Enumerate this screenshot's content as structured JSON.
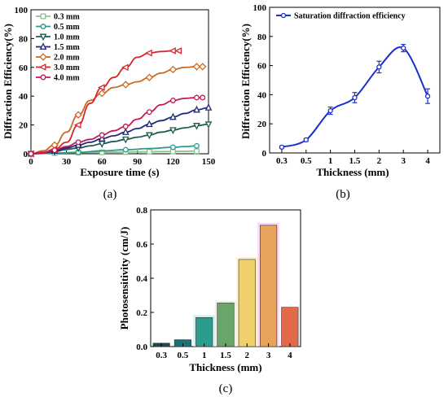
{
  "chart_data": [
    {
      "type": "line",
      "panel_label": "(a)",
      "xlabel": "Exposure time (s)",
      "ylabel": "Diffraction Efficiency(%)",
      "xlim": [
        0,
        150
      ],
      "ylim": [
        0,
        100
      ],
      "xticks": [
        "0",
        "30",
        "60",
        "90",
        "120",
        "150"
      ],
      "yticks": [
        "0",
        "20",
        "40",
        "60",
        "80",
        "100"
      ],
      "grid": false,
      "legend": "top-left",
      "series": [
        {
          "name": "0.3 mm",
          "color": "#8dc18a",
          "marker": "square",
          "x": [
            0,
            10,
            20,
            30,
            40,
            50,
            60,
            70,
            80,
            90,
            100,
            110,
            120,
            130,
            140
          ],
          "y": [
            0,
            0.3,
            0.5,
            0.6,
            0.8,
            0.9,
            1.0,
            1.1,
            1.2,
            1.3,
            1.4,
            1.5,
            1.6,
            1.7,
            1.8
          ]
        },
        {
          "name": "0.5 mm",
          "color": "#2e9a8c",
          "marker": "circle",
          "x": [
            0,
            20,
            40,
            60,
            80,
            100,
            120,
            130,
            140
          ],
          "y": [
            0,
            0.5,
            1.0,
            2.0,
            2.8,
            3.6,
            4.5,
            5.0,
            5.5
          ]
        },
        {
          "name": "1.0 mm",
          "color": "#1f5b50",
          "marker": "triangle-down",
          "x": [
            0,
            10,
            20,
            30,
            40,
            50,
            60,
            70,
            80,
            90,
            100,
            110,
            120,
            130,
            140,
            150
          ],
          "y": [
            0,
            0.5,
            1.5,
            3.0,
            4.0,
            5.5,
            7.0,
            8.5,
            10.0,
            11.5,
            13.0,
            15.0,
            16.5,
            18.0,
            19.5,
            20.5
          ]
        },
        {
          "name": "1.5 mm",
          "color": "#1f2a7a",
          "marker": "triangle-up",
          "x": [
            0,
            10,
            20,
            30,
            40,
            50,
            60,
            70,
            80,
            90,
            100,
            110,
            120,
            130,
            140,
            150
          ],
          "y": [
            0,
            0.5,
            2.0,
            4.0,
            6.0,
            8.0,
            10.5,
            12.5,
            15.0,
            17.5,
            20.5,
            23.0,
            25.5,
            28.0,
            30.5,
            32.0
          ]
        },
        {
          "name": "2.0 mm",
          "color": "#cc6a1f",
          "marker": "diamond",
          "x": [
            0,
            10,
            20,
            30,
            40,
            50,
            60,
            70,
            80,
            90,
            100,
            110,
            120,
            130,
            140,
            145
          ],
          "y": [
            0,
            2.0,
            6.0,
            15.0,
            27.0,
            37.0,
            42.0,
            46.0,
            48.0,
            50.0,
            53.0,
            56.0,
            58.5,
            60.0,
            60.5,
            60.5
          ]
        },
        {
          "name": "3.0 mm",
          "color": "#d6262a",
          "marker": "triangle-left",
          "x": [
            0,
            10,
            20,
            30,
            40,
            50,
            60,
            70,
            80,
            90,
            100,
            110,
            120,
            125
          ],
          "y": [
            0,
            1.0,
            3.0,
            8.0,
            20.0,
            35.0,
            46.0,
            53.0,
            60.0,
            67.0,
            70.0,
            71.0,
            71.5,
            71.5
          ]
        },
        {
          "name": "4.0 mm",
          "color": "#c2185b",
          "marker": "circle",
          "x": [
            0,
            10,
            20,
            30,
            40,
            50,
            60,
            70,
            80,
            90,
            100,
            110,
            120,
            130,
            140,
            145
          ],
          "y": [
            0,
            0.5,
            2.5,
            5.0,
            8.0,
            10.0,
            13.0,
            16.0,
            19.0,
            24.0,
            29.0,
            34.0,
            37.0,
            38.5,
            39.0,
            39.0
          ]
        }
      ]
    },
    {
      "type": "line",
      "panel_label": "(b)",
      "xlabel": "Thickness (mm)",
      "ylabel": "Diffraction Efficiency(%)",
      "categories": [
        "0.3",
        "0.5",
        "1",
        "1.5",
        "2",
        "3",
        "4"
      ],
      "yticks": [
        "0",
        "20",
        "40",
        "60",
        "80",
        "100"
      ],
      "ylim": [
        0,
        100
      ],
      "grid": false,
      "legend": "top-left",
      "series": [
        {
          "name": "Saturation diffraction efficiency",
          "color": "#1a2fd1",
          "values": [
            4,
            9,
            29,
            38,
            59,
            72,
            39
          ],
          "errors": [
            0.8,
            1.0,
            2.5,
            3.5,
            4.0,
            2.5,
            5.0
          ]
        }
      ]
    },
    {
      "type": "bar",
      "panel_label": "(c)",
      "xlabel": "Thickness (mm)",
      "ylabel": "Photosensitivity (cm/J)",
      "categories": [
        "0.3",
        "0.5",
        "1",
        "1.5",
        "2",
        "3",
        "4"
      ],
      "values": [
        0.02,
        0.04,
        0.17,
        0.255,
        0.51,
        0.71,
        0.23
      ],
      "colors": [
        "#1e4a55",
        "#1d6f78",
        "#2a9d8f",
        "#6aa56a",
        "#f0d06a",
        "#e8a45c",
        "#e06a4a"
      ],
      "glow": [
        "#ffffff",
        "#ffffff",
        "#bfe8ee",
        "#e8f0d8",
        "#fdf0c8",
        "#f7c9e8",
        "#ffffff"
      ],
      "yticks": [
        "0.0",
        "0.2",
        "0.4",
        "0.6",
        "0.8"
      ],
      "ylim": [
        0,
        0.8
      ],
      "grid": false
    }
  ]
}
